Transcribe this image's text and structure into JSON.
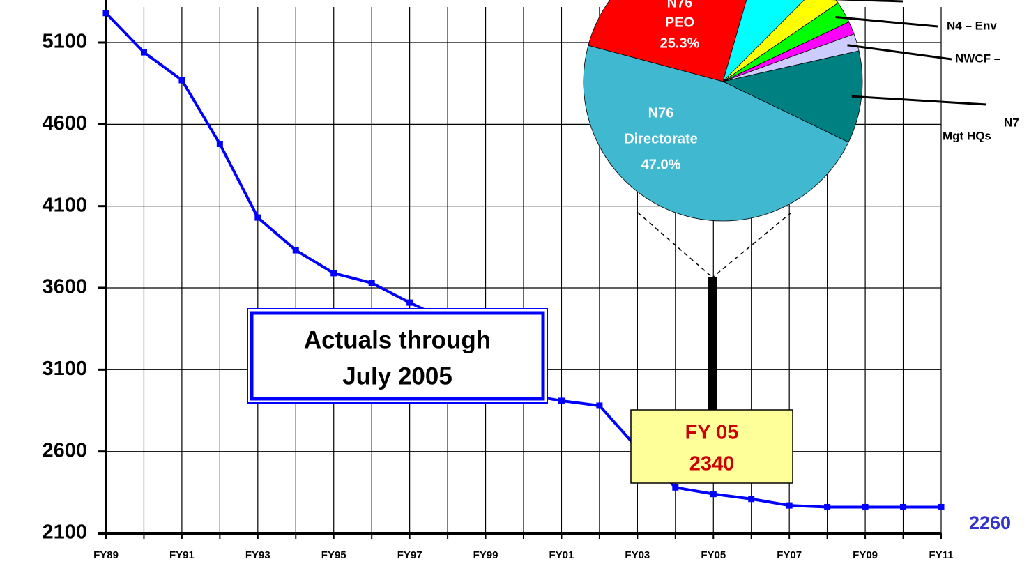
{
  "chart_data": [
    {
      "type": "line",
      "categories": [
        "FY89",
        null,
        "FY91",
        null,
        "FY93",
        null,
        "FY95",
        null,
        "FY97",
        null,
        "FY99",
        null,
        "FY01",
        null,
        "FY03",
        null,
        "FY05",
        null,
        "FY07",
        null,
        "FY09",
        null,
        "FY11"
      ],
      "values": [
        5280,
        5040,
        4870,
        4480,
        4030,
        3830,
        3690,
        3630,
        3510,
        3400,
        3200,
        2950,
        2910,
        2880,
        2620,
        2380,
        2340,
        2310,
        2270,
        2260,
        2260,
        2260,
        2260
      ],
      "value_labels": [
        null,
        null,
        null,
        null,
        null,
        null,
        null,
        null,
        null,
        null,
        null,
        null,
        null,
        null,
        null,
        null,
        "2340",
        null,
        null,
        null,
        null,
        null,
        "2260"
      ],
      "color": "#0000ff",
      "ylim": [
        2100,
        5360
      ],
      "yticks": [
        2100,
        2600,
        3100,
        3600,
        4100,
        4600,
        5100
      ],
      "grid": true,
      "annotations": [
        [
          "Actuals through",
          "July 2005"
        ],
        "FY 05"
      ]
    },
    {
      "type": "pie",
      "values": [
        25.3,
        8.0,
        3.0,
        2.5,
        1.5,
        2.0,
        10.7,
        47.0
      ],
      "colors": [
        "#ff0000",
        "#00ffff",
        "#ffff00",
        "#00ff00",
        "#ff00ff",
        "#ccccff",
        "#008080",
        "#40b8d0"
      ],
      "labels": [
        [
          "N76",
          "PEO"
        ],
        null,
        null,
        [
          "N4 – Env"
        ],
        null,
        [
          "NWCF –"
        ],
        [
          "N7",
          "Mgt  HQs"
        ],
        [
          "N76",
          "Directorate"
        ]
      ],
      "value_labels": [
        "25.3%",
        null,
        null,
        null,
        null,
        null,
        null,
        "47.0%"
      ]
    }
  ]
}
